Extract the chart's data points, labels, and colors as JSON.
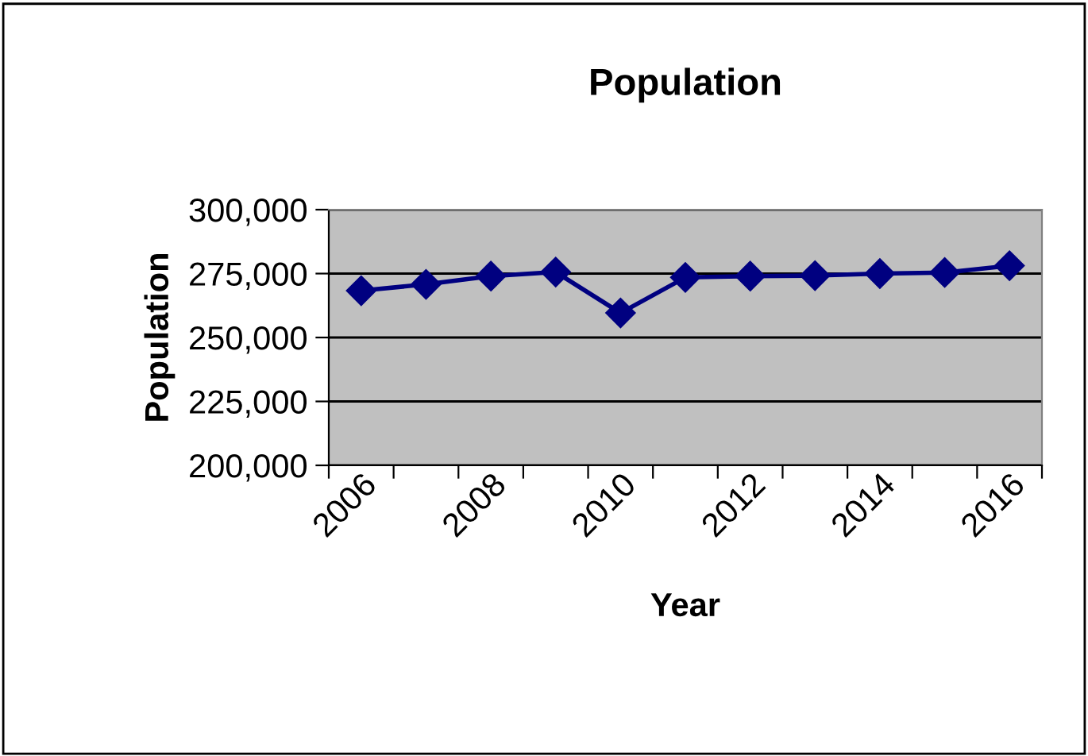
{
  "chart_data": {
    "type": "line",
    "title": "Population",
    "xlabel": "Year",
    "ylabel": "Population",
    "categories": [
      "2006",
      null,
      "2008",
      null,
      "2010",
      null,
      "2012",
      null,
      "2014",
      null,
      "2016"
    ],
    "series": [
      {
        "color": "#000080",
        "values": [
          268300,
          270800,
          274000,
          275600,
          259600,
          273500,
          274000,
          274200,
          275000,
          275400,
          278100
        ]
      }
    ],
    "ylim": [
      200000,
      300000
    ],
    "yticks": [
      {
        "value": 200000,
        "label": "200,000"
      },
      {
        "value": 225000,
        "label": "225,000"
      },
      {
        "value": 250000,
        "label": "250,000"
      },
      {
        "value": 275000,
        "label": "275,000"
      },
      {
        "value": 300000,
        "label": "300,000"
      }
    ],
    "grid": "y",
    "marker": "diamond",
    "line_style": "solid"
  }
}
